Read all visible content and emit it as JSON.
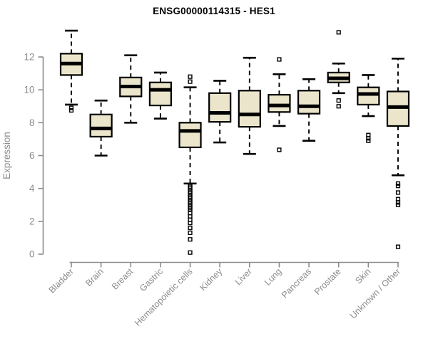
{
  "chart_data": {
    "type": "boxplot",
    "title": "ENSG00000114315 - HES1",
    "xlabel": "",
    "ylabel": "Expression",
    "ylim": [
      0,
      14
    ],
    "yticks": [
      0,
      2,
      4,
      6,
      8,
      10,
      12
    ],
    "grid": false,
    "legend": "none",
    "categories": [
      "Bladder",
      "Brain",
      "Breast",
      "Gastric",
      "Hematopoietic cells",
      "Kidney",
      "Liver",
      "Lung",
      "Pancreas",
      "Prostate",
      "Skin",
      "Unknown / Other"
    ],
    "series": [
      {
        "name": "Bladder",
        "whisker_low": 9.1,
        "q1": 10.9,
        "median": 11.6,
        "q3": 12.2,
        "whisker_high": 13.6,
        "outliers": [
          8.9,
          8.75
        ]
      },
      {
        "name": "Brain",
        "whisker_low": 6.0,
        "q1": 7.15,
        "median": 7.65,
        "q3": 8.5,
        "whisker_high": 9.35,
        "outliers": []
      },
      {
        "name": "Breast",
        "whisker_low": 8.0,
        "q1": 9.6,
        "median": 10.2,
        "q3": 10.75,
        "whisker_high": 12.1,
        "outliers": []
      },
      {
        "name": "Gastric",
        "whisker_low": 8.25,
        "q1": 9.05,
        "median": 10.0,
        "q3": 10.45,
        "whisker_high": 11.05,
        "outliers": []
      },
      {
        "name": "Hematopoietic cells",
        "whisker_low": 4.3,
        "q1": 6.5,
        "median": 7.5,
        "q3": 8.0,
        "whisker_high": 10.15,
        "outliers": [
          10.8,
          10.5,
          4.2,
          4.1,
          4.0,
          3.9,
          3.8,
          3.7,
          3.6,
          3.5,
          3.4,
          3.3,
          3.2,
          3.1,
          3.0,
          2.9,
          2.8,
          2.7,
          2.5,
          2.3,
          2.1,
          1.9,
          1.6,
          1.3,
          0.9,
          0.1
        ]
      },
      {
        "name": "Kidney",
        "whisker_low": 6.8,
        "q1": 8.05,
        "median": 8.6,
        "q3": 9.8,
        "whisker_high": 10.55,
        "outliers": []
      },
      {
        "name": "Liver",
        "whisker_low": 6.1,
        "q1": 7.75,
        "median": 8.5,
        "q3": 9.95,
        "whisker_high": 11.95,
        "outliers": []
      },
      {
        "name": "Lung",
        "whisker_low": 7.8,
        "q1": 8.65,
        "median": 9.05,
        "q3": 9.7,
        "whisker_high": 10.95,
        "outliers": [
          11.85,
          6.35
        ]
      },
      {
        "name": "Pancreas",
        "whisker_low": 6.9,
        "q1": 8.55,
        "median": 9.0,
        "q3": 9.95,
        "whisker_high": 10.65,
        "outliers": []
      },
      {
        "name": "Prostate",
        "whisker_low": 9.8,
        "q1": 10.45,
        "median": 10.7,
        "q3": 11.05,
        "whisker_high": 11.6,
        "outliers": [
          13.5,
          9.35,
          9.0
        ]
      },
      {
        "name": "Skin",
        "whisker_low": 8.4,
        "q1": 9.1,
        "median": 9.75,
        "q3": 10.15,
        "whisker_high": 10.9,
        "outliers": [
          7.25,
          7.05,
          6.9
        ]
      },
      {
        "name": "Unknown / Other",
        "whisker_low": 4.8,
        "q1": 7.8,
        "median": 8.95,
        "q3": 9.9,
        "whisker_high": 11.9,
        "outliers": [
          4.3,
          4.15,
          3.75,
          3.35,
          3.15,
          3.0,
          0.45
        ]
      }
    ],
    "colors": {
      "box_fill": "#EBE5CB",
      "box_stroke": "#000000",
      "median": "#000000",
      "axis": "#8C8C8C",
      "tick_label": "#8C8C8C",
      "title": "#000000",
      "background": "#FFFFFF"
    }
  }
}
